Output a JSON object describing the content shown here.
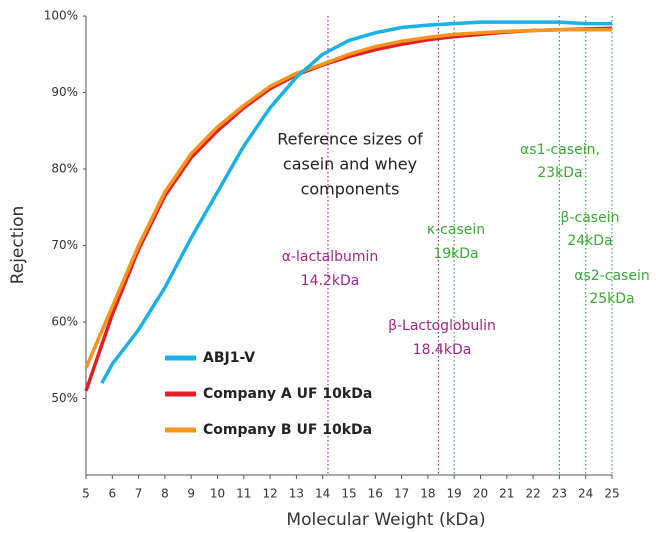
{
  "chart_data": {
    "type": "line",
    "x_label": "Molecular Weight (kDa)",
    "y_label": "Rejection",
    "xlim": [
      5,
      25
    ],
    "xticks": [
      5,
      6,
      7,
      8,
      9,
      10,
      11,
      12,
      13,
      14,
      15,
      16,
      17,
      18,
      19,
      20,
      21,
      22,
      23,
      24,
      25
    ],
    "ylim": [
      40,
      100
    ],
    "yticks": [
      {
        "value": 50,
        "label": "50%"
      },
      {
        "value": 60,
        "label": "60%"
      },
      {
        "value": 70,
        "label": "70%"
      },
      {
        "value": 80,
        "label": "80%"
      },
      {
        "value": 90,
        "label": "90%"
      },
      {
        "value": 100,
        "label": "100%"
      }
    ],
    "series": [
      {
        "name": "ABJ1-V",
        "color": "#1ab0e8",
        "x": [
          5.6,
          6,
          7,
          8,
          9,
          10,
          11,
          12,
          13,
          14,
          15,
          16,
          17,
          18,
          19,
          20,
          21,
          22,
          23,
          24,
          25
        ],
        "values": [
          52,
          54.5,
          59,
          64.5,
          71,
          77,
          83,
          88,
          92,
          95,
          96.8,
          97.8,
          98.5,
          98.8,
          99,
          99.2,
          99.2,
          99.2,
          99.2,
          99,
          99
        ]
      },
      {
        "name": "Company A UF 10kDa",
        "color": "#e31e24",
        "x": [
          5,
          6,
          7,
          8,
          9,
          10,
          11,
          12,
          13,
          14,
          15,
          16,
          17,
          18,
          19,
          20,
          21,
          22,
          23,
          24,
          25
        ],
        "values": [
          51,
          61,
          69.5,
          76.5,
          81.5,
          85,
          88,
          90.5,
          92.3,
          93.6,
          94.7,
          95.6,
          96.3,
          96.9,
          97.3,
          97.6,
          97.9,
          98.1,
          98.2,
          98.3,
          98.4
        ]
      },
      {
        "name": "Company B UF 10kDa",
        "color": "#f7941d",
        "x": [
          5,
          6,
          7,
          8,
          9,
          10,
          11,
          12,
          13,
          14,
          15,
          16,
          17,
          18,
          19,
          20,
          21,
          22,
          23,
          24,
          25
        ],
        "values": [
          54,
          62,
          70,
          77,
          82,
          85.5,
          88.3,
          90.8,
          92.5,
          93.7,
          95,
          96,
          96.7,
          97.2,
          97.6,
          97.8,
          98,
          98.1,
          98.2,
          98.2,
          98.2
        ]
      }
    ],
    "reference_lines": [
      {
        "x": 14.2,
        "color": "#a0288c"
      },
      {
        "x": 18.4,
        "color": "#a0288c"
      },
      {
        "x": 19,
        "color": "#3aaa35"
      },
      {
        "x": 23,
        "color": "#3aaa35"
      },
      {
        "x": 24,
        "color": "#3aaa35"
      },
      {
        "x": 25,
        "color": "#3aaa35"
      }
    ],
    "annotations": [
      {
        "lines": [
          "Reference sizes of",
          "casein and whey",
          "components"
        ],
        "color": "#222222"
      },
      {
        "lines": [
          "α-lactalbumin",
          "14.2kDa"
        ],
        "color": "#a0288c"
      },
      {
        "lines": [
          "β-Lactoglobulin",
          "18.4kDa"
        ],
        "color": "#a0288c"
      },
      {
        "lines": [
          "κ-casein",
          "19kDa"
        ],
        "color": "#3aaa35"
      },
      {
        "lines": [
          "αs1-casein,",
          "23kDa"
        ],
        "color": "#3aaa35"
      },
      {
        "lines": [
          "β-casein",
          "24kDa"
        ],
        "color": "#3aaa35"
      },
      {
        "lines": [
          "αs2-casein",
          "25kDa"
        ],
        "color": "#3aaa35"
      }
    ]
  }
}
